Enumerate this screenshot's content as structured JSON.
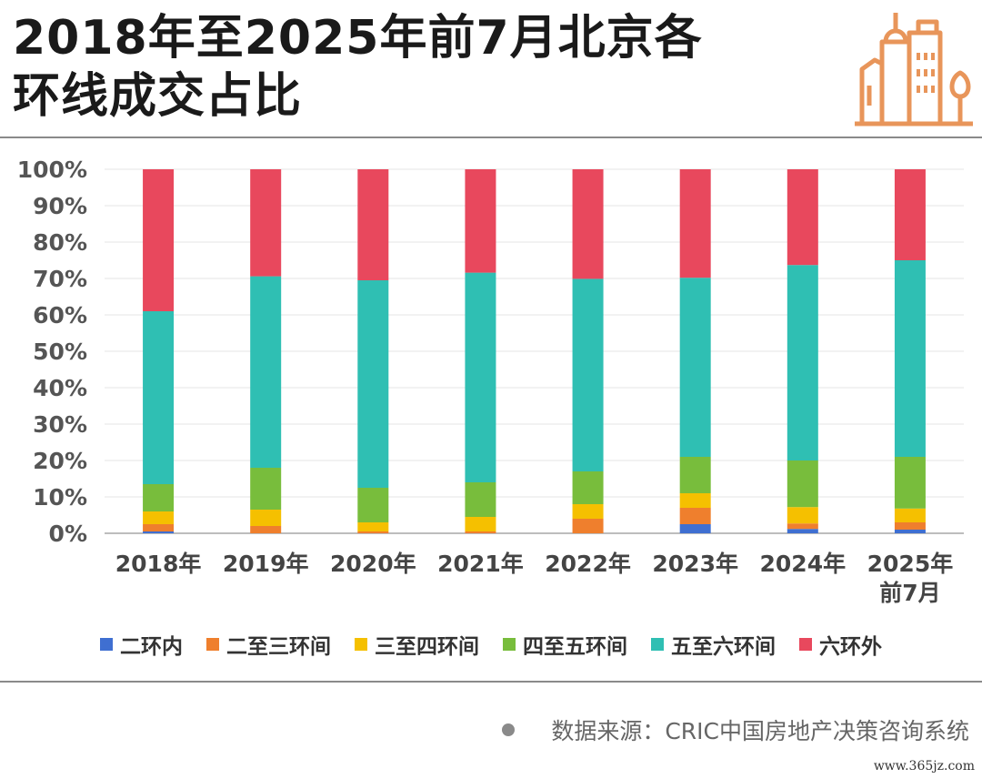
{
  "header": {
    "title_line1": "2018年至2025年前7月北京各",
    "title_line2": "环线成交占比"
  },
  "logo": {
    "icon": "buildings-icon",
    "color": "#e8955a"
  },
  "chart_data": {
    "type": "bar",
    "stacked": true,
    "categories": [
      [
        "2018年"
      ],
      [
        "2019年"
      ],
      [
        "2020年"
      ],
      [
        "2021年"
      ],
      [
        "2022年"
      ],
      [
        "2023年"
      ],
      [
        "2024年"
      ],
      [
        "2025年",
        "前7月"
      ]
    ],
    "y_ticks": [
      "0%",
      "10%",
      "20%",
      "30%",
      "40%",
      "50%",
      "60%",
      "70%",
      "80%",
      "90%",
      "100%"
    ],
    "ylim": [
      0,
      100
    ],
    "grid": true,
    "legend_position": "bottom",
    "series": [
      {
        "name": "二环内",
        "color": "#3f6fd1",
        "values": [
          0.5,
          0.0,
          0.0,
          0.0,
          0.0,
          2.5,
          1.2,
          1.0
        ]
      },
      {
        "name": "二至三环间",
        "color": "#ef7f2d",
        "values": [
          2.0,
          2.0,
          0.5,
          0.5,
          4.0,
          4.5,
          1.5,
          2.0
        ]
      },
      {
        "name": "三至四环间",
        "color": "#f5c000",
        "values": [
          3.5,
          4.5,
          2.5,
          4.0,
          4.0,
          4.0,
          4.5,
          3.8
        ]
      },
      {
        "name": "四至五环间",
        "color": "#78bd3c",
        "values": [
          7.5,
          11.5,
          9.5,
          9.5,
          9.0,
          10.0,
          12.8,
          14.2
        ]
      },
      {
        "name": "五至六环间",
        "color": "#2fbfb3",
        "values": [
          47.5,
          52.6,
          57.0,
          57.6,
          52.9,
          49.2,
          53.7,
          54.0
        ]
      },
      {
        "name": "六环外",
        "color": "#e8485d",
        "values": [
          39.0,
          29.4,
          30.5,
          28.4,
          30.1,
          29.8,
          26.3,
          25.0
        ]
      }
    ]
  },
  "source": {
    "label": "数据来源：CRIC中国房地产决策咨询系统"
  },
  "watermark": "www.365jz.com"
}
